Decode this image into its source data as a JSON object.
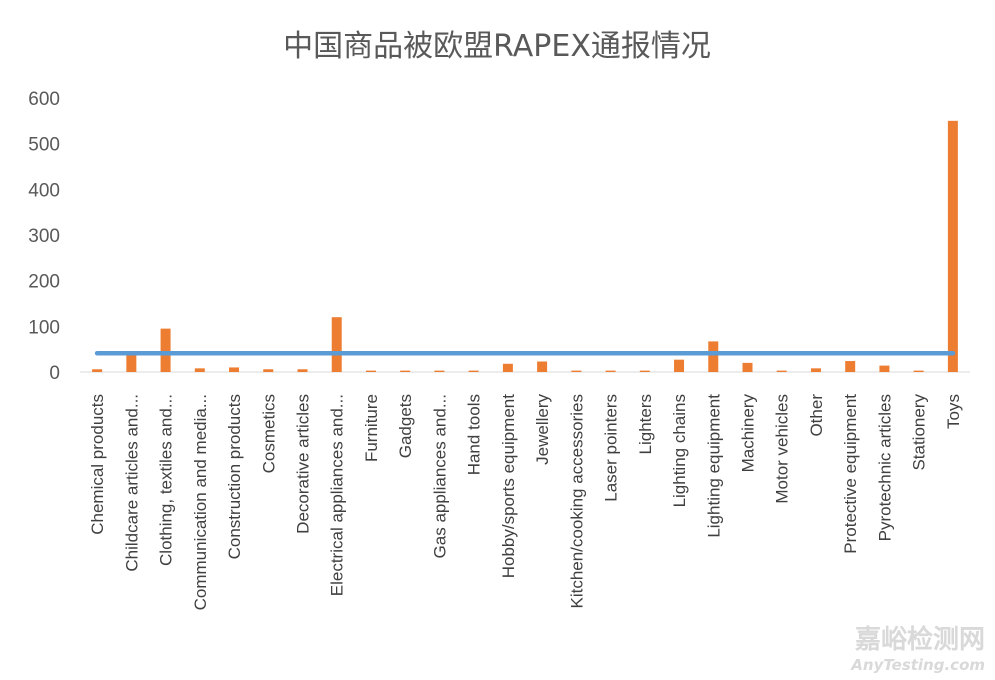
{
  "chart_data": {
    "type": "bar",
    "title": "中国商品被欧盟RAPEX通报情况",
    "xlabel": "",
    "ylabel": "",
    "ylim": [
      0,
      600
    ],
    "yticks": [
      0,
      100,
      200,
      300,
      400,
      500,
      600
    ],
    "grid": false,
    "legend": "none",
    "categories": [
      "Chemical products",
      "Childcare articles and...",
      "Clothing, textiles and...",
      "Communication and media...",
      "Construction products",
      "Cosmetics",
      "Decorative articles",
      "Electrical appliances and...",
      "Furniture",
      "Gadgets",
      "Gas appliances and...",
      "Hand tools",
      "Hobby/sports equipment",
      "Jewellery",
      "Kitchen/cooking accessories",
      "Laser pointers",
      "Lighters",
      "Lighting chains",
      "Lighting equipment",
      "Machinery",
      "Motor vehicles",
      "Other",
      "Protective equipment",
      "Pyrotechnic articles",
      "Stationery",
      "Toys"
    ],
    "series": [
      {
        "type": "bar",
        "color": "#ed7d31",
        "values": [
          6,
          38,
          95,
          8,
          10,
          6,
          6,
          120,
          3,
          3,
          3,
          3,
          18,
          23,
          3,
          3,
          3,
          27,
          67,
          20,
          3,
          8,
          24,
          14,
          3,
          550
        ]
      },
      {
        "type": "line",
        "color": "#5b9bd5",
        "values": [
          41,
          41,
          41,
          41,
          41,
          41,
          41,
          41,
          41,
          41,
          41,
          41,
          41,
          41,
          41,
          41,
          41,
          41,
          41,
          41,
          41,
          41,
          41,
          41,
          41,
          41
        ]
      }
    ]
  },
  "watermark": {
    "cn": "嘉峪检测网",
    "en": "AnyTesting.com"
  }
}
